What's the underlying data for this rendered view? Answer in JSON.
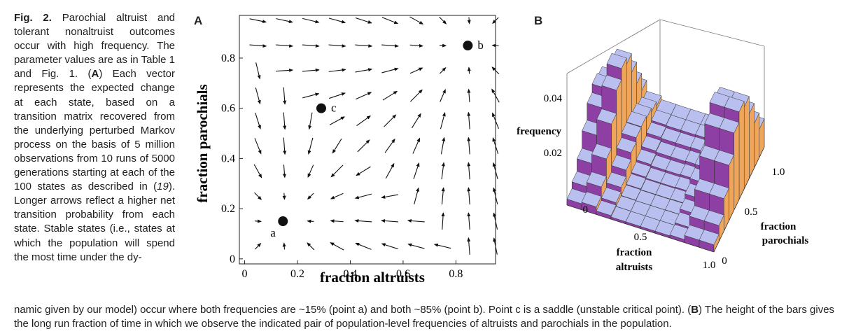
{
  "caption": {
    "fig_label": "Fig. 2.",
    "lines_side": [
      " Parochial altruist and tolerant nonaltruist outcomes occur with high frequency. The parameter values are as in Table 1 and Fig. 1. (",
      "A",
      ") Each vector represents the expected change at each state, based on a transition matrix recovered from the underlying perturbed Markov process on the basis of 5 million observations from 10 runs of 5000 generations starting at each of the 100 states as described in (",
      "19",
      "). Longer arrows reflect a higher net transition probability from each state. Stable states (i.e., states at which the population will spend the most time under the dy-"
    ],
    "bottom_1": "namic given by our model) occur where both frequencies are ~15% (point a) and both ~85% (point b). Point c is a saddle (unstable critical point). (",
    "bottom_B": "B",
    "bottom_2": ") The height of the bars gives the long run fraction of time in which we observe the indicated pair of population-level frequencies of altruists and parochials in the population."
  },
  "panel_a": {
    "letter": "A",
    "xlabel": "fraction altruists",
    "ylabel": "fraction parochials",
    "x_ticks": [
      "0",
      "0.2",
      "0.4",
      "0.6",
      "0.8"
    ],
    "y_ticks": [
      "0",
      "0.2",
      "0.4",
      "0.6",
      "0.8"
    ],
    "points": [
      {
        "label": "a",
        "x": 0.145,
        "y": 0.15
      },
      {
        "label": "b",
        "x": 0.845,
        "y": 0.85
      },
      {
        "label": "c",
        "x": 0.29,
        "y": 0.6
      }
    ]
  },
  "panel_b": {
    "letter": "B",
    "zlabel": "frequency",
    "z_ticks": [
      "0",
      "0.02",
      "0.04"
    ],
    "x_label_1": "fraction",
    "x_label_2": "altruists",
    "x_ticks": [
      "0.5",
      "1.0"
    ],
    "y_label_1": "fraction",
    "y_label_2": "parochials",
    "y_ticks": [
      "0",
      "0.5",
      "1.0"
    ]
  },
  "chart_data": [
    {
      "type": "vector-field",
      "xlabel": "fraction altruists",
      "ylabel": "fraction parochials",
      "xlim": [
        0,
        0.95
      ],
      "ylim": [
        0,
        0.95
      ],
      "grid_positions": [
        0.05,
        0.15,
        0.25,
        0.35,
        0.45,
        0.55,
        0.65,
        0.75,
        0.85,
        0.95
      ],
      "stable_points": [
        [
          0.15,
          0.15
        ],
        [
          0.85,
          0.85
        ]
      ],
      "saddle_point": [
        0.29,
        0.6
      ]
    },
    {
      "type": "bar3d",
      "zlabel": "frequency",
      "xlabel": "fraction altruists",
      "ylabel": "fraction parochials",
      "zlim": [
        0,
        0.05
      ],
      "peaks": [
        {
          "near": [
            0.15,
            0.15
          ],
          "max_frequency": 0.045
        },
        {
          "near": [
            0.85,
            0.85
          ],
          "max_frequency": 0.048
        }
      ]
    }
  ]
}
